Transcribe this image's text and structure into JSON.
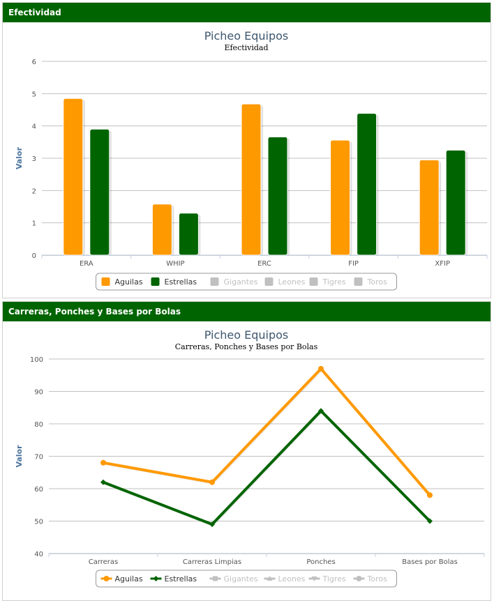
{
  "panels": [
    {
      "header": "Efectividad"
    },
    {
      "header": "Carreras, Ponches y Bases por Bolas"
    }
  ],
  "colors": {
    "header_bg": "#006400",
    "aguilas": "#ff9900",
    "estrellas": "#006400",
    "disabled": "#c0c0c0"
  },
  "chart_data": [
    {
      "type": "bar",
      "title": "Picheo Equipos",
      "subtitle": "Efectividad",
      "ylabel": "Valor",
      "xlabel": "",
      "ylim": [
        0,
        6
      ],
      "yticks": [
        0,
        1,
        2,
        3,
        4,
        5,
        6
      ],
      "grid": true,
      "legend_placement": "bottom-center",
      "categories": [
        "ERA",
        "WHIP",
        "ERC",
        "FIP",
        "XFIP"
      ],
      "series": [
        {
          "name": "Aguilas",
          "color": "#ff9900",
          "visible": true,
          "values": [
            4.85,
            1.58,
            4.68,
            3.56,
            2.95
          ]
        },
        {
          "name": "Estrellas",
          "color": "#006400",
          "visible": true,
          "values": [
            3.9,
            1.3,
            3.66,
            4.39,
            3.25
          ]
        },
        {
          "name": "Gigantes",
          "visible": false
        },
        {
          "name": "Leones",
          "visible": false
        },
        {
          "name": "Tigres",
          "visible": false
        },
        {
          "name": "Toros",
          "visible": false
        }
      ]
    },
    {
      "type": "line",
      "title": "Picheo Equipos",
      "subtitle": "Carreras, Ponches y Bases por Bolas",
      "ylabel": "Valor",
      "xlabel": "",
      "ylim": [
        40,
        100
      ],
      "yticks": [
        40,
        50,
        60,
        70,
        80,
        90,
        100
      ],
      "grid": true,
      "legend_placement": "bottom-center",
      "categories": [
        "Carreras",
        "Carreras Limpias",
        "Ponches",
        "Bases por Bolas"
      ],
      "series": [
        {
          "name": "Aguilas",
          "color": "#ff9900",
          "marker": "circle",
          "visible": true,
          "values": [
            68,
            62,
            97,
            58
          ]
        },
        {
          "name": "Estrellas",
          "color": "#006400",
          "marker": "diamond",
          "visible": true,
          "values": [
            62,
            49,
            84,
            50
          ]
        },
        {
          "name": "Gigantes",
          "marker": "square",
          "visible": false
        },
        {
          "name": "Leones",
          "marker": "triangle",
          "visible": false
        },
        {
          "name": "Tigres",
          "marker": "triangle-down",
          "visible": false
        },
        {
          "name": "Toros",
          "marker": "circle",
          "visible": false
        }
      ]
    }
  ]
}
